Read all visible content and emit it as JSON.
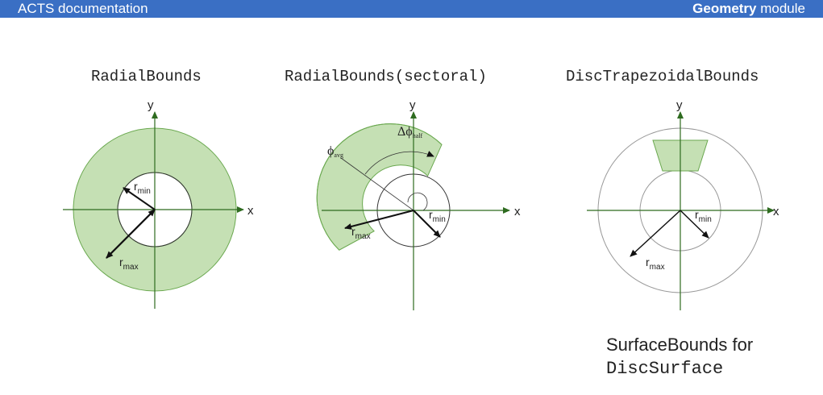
{
  "header": {
    "left_text": "ACTS documentation",
    "right_bold": "Geometry",
    "right_text": " module",
    "bar_color": "#3a6fc4"
  },
  "diagrams": [
    {
      "title": "RadialBounds",
      "axis_x": "x",
      "axis_y": "y",
      "label_rmin": "r",
      "label_rmin_sub": "min",
      "label_rmax": "r",
      "label_rmax_sub": "max"
    },
    {
      "title": "RadialBounds(sectoral)",
      "axis_x": "x",
      "axis_y": "y",
      "label_rmin": "r",
      "label_rmin_sub": "min",
      "label_rmax": "r",
      "label_rmax_sub": "max",
      "label_phi_avg": "ϕ",
      "label_phi_avg_sub": "avg",
      "label_dphi": "Δϕ",
      "label_dphi_sub": "half"
    },
    {
      "title": "DiscTrapezoidalBounds",
      "axis_x": "x",
      "axis_y": "y",
      "label_rmin": "r",
      "label_rmin_sub": "min",
      "label_rmax": "r",
      "label_rmax_sub": "max"
    }
  ],
  "caption": {
    "line1": "SurfaceBounds for",
    "line2": "DiscSurface"
  },
  "colors": {
    "fill_green": "#c5e0b4",
    "stroke_green": "#6aa84f",
    "axis_green": "#2e6b1f"
  }
}
